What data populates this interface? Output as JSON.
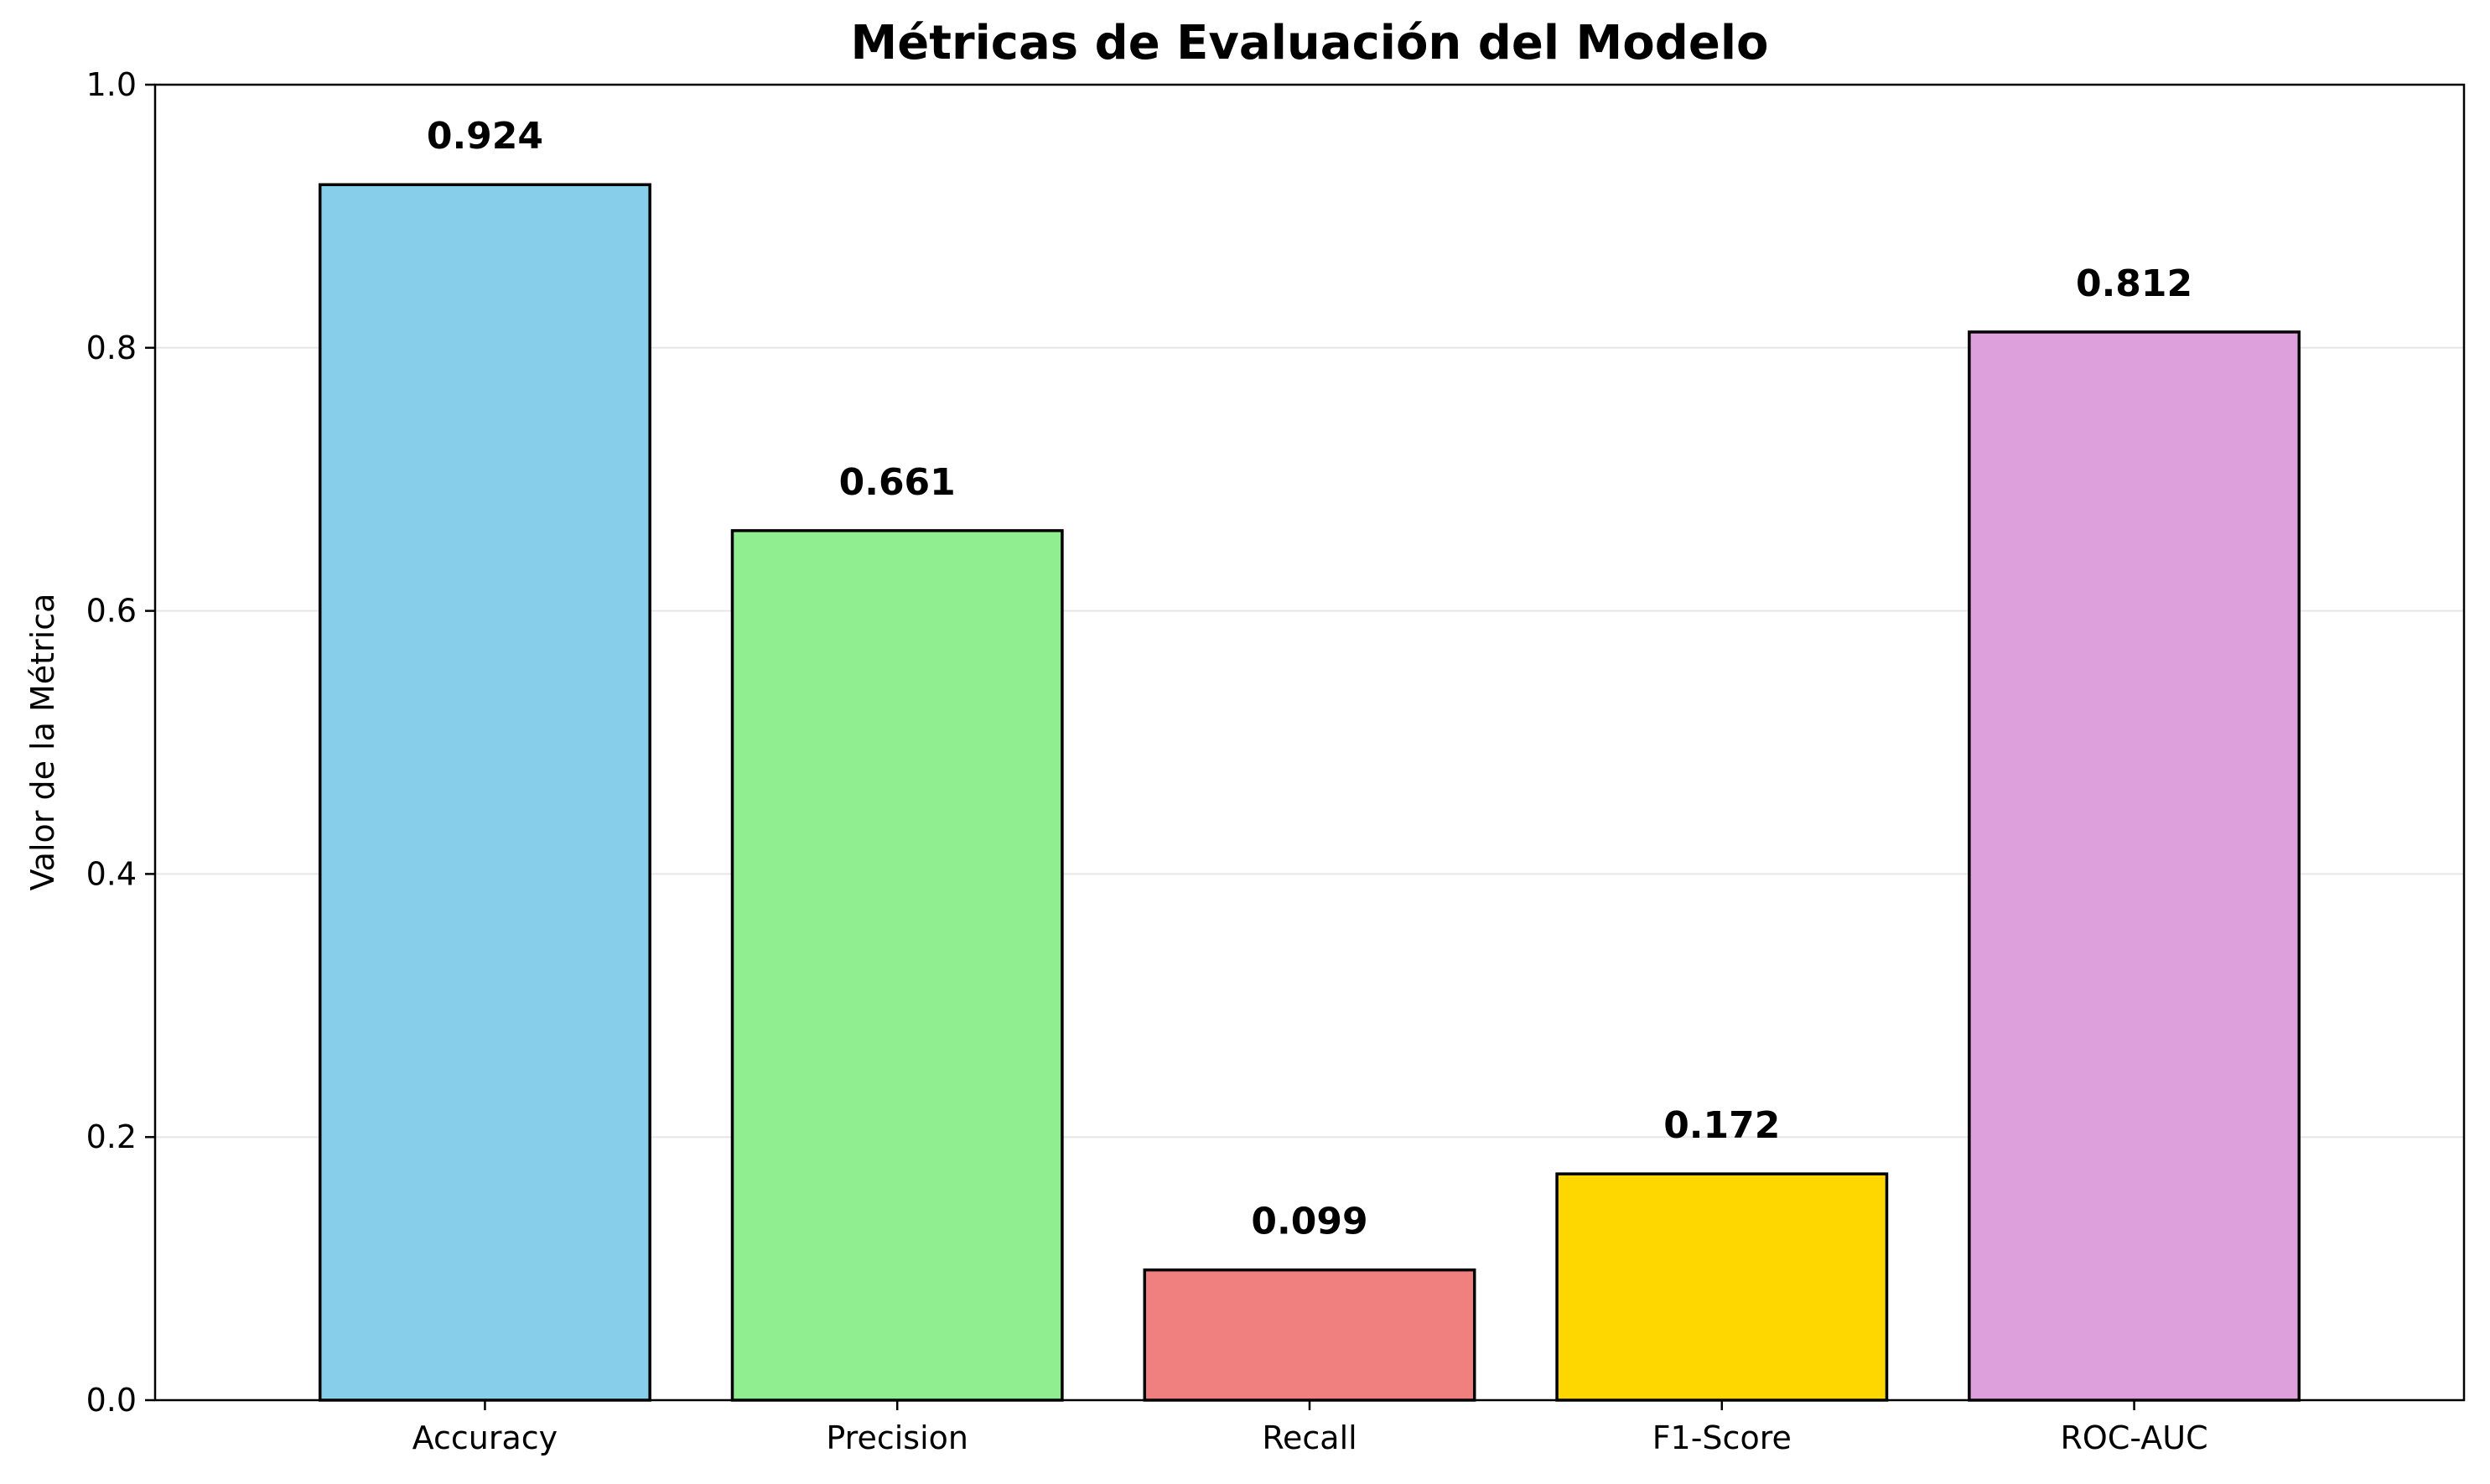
{
  "chart_data": {
    "type": "bar",
    "title": "Métricas de Evaluación del Modelo",
    "xlabel": "",
    "ylabel": "Valor de la Métrica",
    "categories": [
      "Accuracy",
      "Precision",
      "Recall",
      "F1-Score",
      "ROC-AUC"
    ],
    "values": [
      0.924,
      0.661,
      0.099,
      0.172,
      0.812
    ],
    "value_labels": [
      "0.924",
      "0.661",
      "0.099",
      "0.172",
      "0.812"
    ],
    "colors": [
      "#87CEEB",
      "#90EE90",
      "#F08080",
      "#FFD700",
      "#DDA0DD"
    ],
    "edge_color": "#000000",
    "ylim": [
      0,
      1.0
    ],
    "yticks": [
      0.0,
      0.2,
      0.4,
      0.6,
      0.8,
      1.0
    ],
    "ytick_labels": [
      "0.0",
      "0.2",
      "0.4",
      "0.6",
      "0.8",
      "1.0"
    ],
    "grid": {
      "axis": "y",
      "on": true,
      "color": "#e6e6e6"
    }
  }
}
